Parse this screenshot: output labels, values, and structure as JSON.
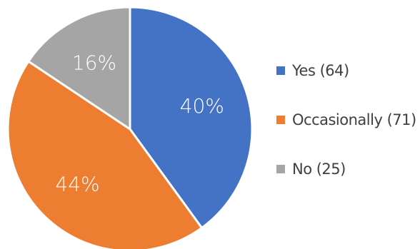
{
  "chart_data": {
    "type": "pie",
    "title": "",
    "slices": [
      {
        "label": "Yes",
        "count": 64,
        "percent": 40,
        "percent_label": "40%",
        "legend_label": "Yes  (64)",
        "color": "#4472C4"
      },
      {
        "label": "Occasionally",
        "count": 71,
        "percent": 44,
        "percent_label": "44%",
        "legend_label": "Occasionally (71)",
        "color": "#ED7D31"
      },
      {
        "label": "No",
        "count": 25,
        "percent": 16,
        "percent_label": "16%",
        "legend_label": "No  (25)",
        "color": "#A5A5A5"
      }
    ],
    "start_angle": "12 o'clock",
    "direction": "clockwise",
    "legend_position": "right",
    "label_color": "#FFFFFF",
    "slice_border_color": "#FFFFFF"
  }
}
